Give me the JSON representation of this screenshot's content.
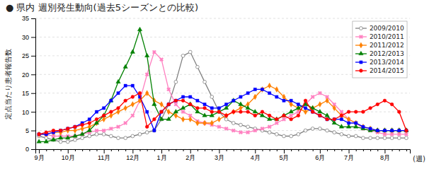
{
  "chart_data": {
    "type": "line",
    "title": "● 県内 週別発生動向(過去5シーズンとの比較)",
    "y_label": "定点当たり患者報告数",
    "x_label": "(週)",
    "categories": [
      "9月",
      null,
      null,
      null,
      "10月",
      null,
      null,
      null,
      null,
      "11月",
      null,
      null,
      null,
      "12月",
      null,
      null,
      null,
      "1月",
      null,
      null,
      null,
      "2月",
      null,
      null,
      null,
      "3月",
      null,
      null,
      null,
      null,
      "4月",
      null,
      null,
      null,
      "5月",
      null,
      null,
      null,
      null,
      "6月",
      null,
      null,
      null,
      "7月",
      null,
      null,
      null,
      null,
      "8月",
      null,
      null,
      null
    ],
    "ylim": [
      0,
      35
    ],
    "yticks": [
      0,
      5,
      10,
      15,
      20,
      25,
      30,
      35
    ],
    "grid": true,
    "legend": "upper right",
    "series": [
      {
        "name": "2009/2010",
        "color": "#808080",
        "marker": "circle-open",
        "values": [
          3.5,
          3.0,
          2.5,
          2.0,
          2.0,
          2.5,
          3.0,
          3.5,
          4.0,
          4.0,
          3.5,
          3.0,
          3.0,
          3.5,
          4.0,
          4.5,
          5.0,
          8.0,
          12.0,
          18.0,
          25.0,
          26.0,
          22.0,
          18.0,
          14.0,
          10.0,
          8.0,
          7.0,
          6.5,
          6.0,
          5.5,
          5.0,
          4.5,
          4.0,
          3.5,
          3.5,
          4.0,
          5.0,
          5.5,
          5.5,
          5.0,
          4.5,
          4.0,
          3.5,
          3.5,
          3.0,
          3.0,
          3.0,
          3.0,
          3.0,
          3.0,
          3.0
        ]
      },
      {
        "name": "2010/2011",
        "color": "#ff80c0",
        "marker": "x",
        "values": [
          4.0,
          4.0,
          3.5,
          3.5,
          3.5,
          3.5,
          4.0,
          4.5,
          5.0,
          5.0,
          5.5,
          6.0,
          7.0,
          9.0,
          13.0,
          20.0,
          26.0,
          24.0,
          16.0,
          12.0,
          10.0,
          9.0,
          7.5,
          7.0,
          6.5,
          6.0,
          5.5,
          5.0,
          4.5,
          4.5,
          5.0,
          5.5,
          6.0,
          7.0,
          8.0,
          9.0,
          10.0,
          12.0,
          14.0,
          15.0,
          14.0,
          12.0,
          10.0,
          8.0,
          7.0,
          5.5,
          5.0,
          4.5,
          4.0,
          4.0,
          4.0,
          4.0
        ]
      },
      {
        "name": "2011/2012",
        "color": "#ff8000",
        "marker": "diamond",
        "values": [
          4.0,
          4.0,
          4.5,
          4.5,
          5.0,
          5.0,
          5.5,
          6.0,
          7.0,
          8.0,
          9.0,
          10.0,
          11.0,
          12.0,
          13.0,
          15.0,
          13.0,
          12.0,
          10.0,
          9.0,
          8.0,
          8.0,
          7.0,
          7.0,
          7.0,
          8.0,
          9.0,
          10.0,
          11.0,
          12.0,
          14.0,
          16.0,
          17.0,
          16.0,
          14.0,
          12.0,
          11.0,
          10.0,
          11.0,
          12.0,
          13.0,
          11.0,
          9.0,
          8.0,
          7.0,
          6.0,
          5.5,
          5.0,
          5.0,
          5.0,
          5.0,
          5.0
        ]
      },
      {
        "name": "2012/2013",
        "color": "#008000",
        "marker": "triangle",
        "values": [
          2.0,
          2.0,
          2.5,
          3.0,
          3.0,
          3.5,
          4.0,
          5.0,
          7.0,
          9.0,
          13.0,
          18.0,
          22.0,
          26.0,
          32.0,
          25.0,
          12.0,
          8.0,
          8.0,
          10.0,
          11.0,
          12.0,
          10.0,
          9.0,
          9.0,
          10.0,
          11.0,
          13.0,
          12.0,
          11.0,
          10.0,
          9.0,
          8.0,
          8.0,
          9.0,
          10.0,
          11.0,
          12.0,
          11.0,
          10.0,
          9.0,
          7.0,
          6.0,
          6.0,
          6.0,
          5.5,
          5.0,
          5.0,
          5.0,
          5.0,
          5.0,
          5.0
        ]
      },
      {
        "name": "2013/2014",
        "color": "#0000ff",
        "marker": "square",
        "values": [
          4.0,
          4.0,
          4.5,
          5.0,
          5.5,
          6.0,
          7.0,
          8.0,
          10.0,
          11.0,
          13.0,
          15.0,
          17.0,
          17.0,
          14.0,
          10.0,
          5.0,
          10.0,
          12.0,
          13.0,
          14.0,
          14.0,
          13.0,
          12.0,
          11.0,
          11.0,
          12.0,
          13.0,
          14.0,
          15.0,
          16.0,
          16.0,
          15.0,
          14.0,
          13.0,
          13.0,
          12.0,
          11.0,
          10.0,
          9.0,
          8.0,
          8.0,
          8.0,
          7.0,
          7.0,
          6.0,
          5.5,
          5.0,
          5.0,
          5.0,
          5.0,
          5.0
        ]
      },
      {
        "name": "2014/2015",
        "color": "#ff0000",
        "marker": "circle",
        "values": [
          4.0,
          4.5,
          5.0,
          5.0,
          5.5,
          6.0,
          6.5,
          7.0,
          8.0,
          9.0,
          10.0,
          11.0,
          13.0,
          14.0,
          15.0,
          6.0,
          8.0,
          10.0,
          12.0,
          13.0,
          13.0,
          12.0,
          11.0,
          11.0,
          10.0,
          10.0,
          9.0,
          10.0,
          10.0,
          10.0,
          9.0,
          10.0,
          9.0,
          8.0,
          9.0,
          8.0,
          9.0,
          13.0,
          10.0,
          9.0,
          8.0,
          8.0,
          9.0,
          10.0,
          10.0,
          10.0,
          11.0,
          12.0,
          13.0,
          12.0,
          10.0,
          5.0
        ]
      }
    ]
  }
}
